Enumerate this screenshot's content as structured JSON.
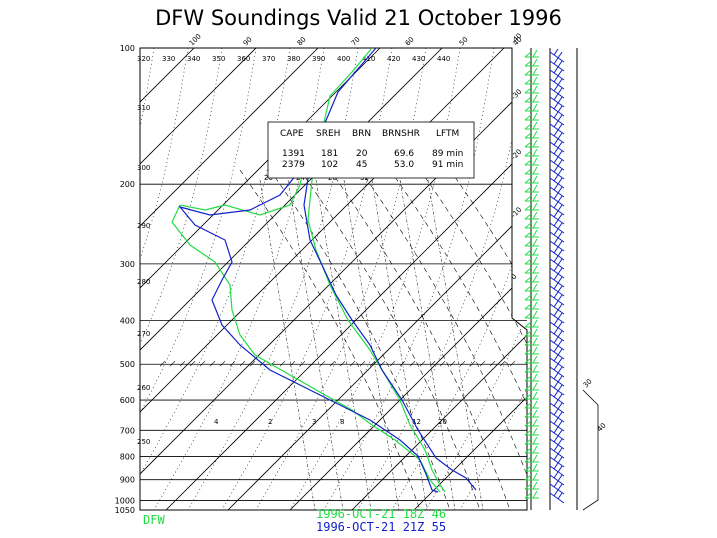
{
  "title": "DFW Soundings Valid 21 October 1996",
  "colors": {
    "run1": "#22dd44",
    "run2": "#1122cc",
    "grid": "#000000"
  },
  "station": "DFW",
  "runs": [
    {
      "label": "1996-OCT-21 18Z 46",
      "color": "#22dd44"
    },
    {
      "label": "1996-OCT-21 21Z 55",
      "color": "#1122cc"
    }
  ],
  "indices": {
    "headers": [
      "CAPE",
      "SREH",
      "BRN",
      "BRNSHR",
      "LFTM"
    ],
    "rows": [
      {
        "values": [
          "1391",
          "181",
          "20",
          "69.6",
          "89 min"
        ],
        "color": "#22dd44"
      },
      {
        "values": [
          "2379",
          "102",
          "45",
          "53.0",
          "91 min"
        ],
        "color": "#1122cc"
      }
    ]
  },
  "chart_data": {
    "type": "line",
    "title": "DFW Soundings Valid 21 October 1996",
    "y_axis": {
      "label": "",
      "scale": "log-pressure",
      "range": [
        1050,
        100
      ],
      "ticks": [
        100,
        200,
        300,
        400,
        500,
        600,
        700,
        800,
        900,
        1000,
        1050
      ]
    },
    "isotherms": [
      "-40",
      "-30",
      "-20",
      "-10",
      "0",
      "10",
      "20",
      "30",
      "40"
    ],
    "skew_top_labels": [
      "100",
      "90",
      "80",
      "70",
      "60",
      "50",
      "40"
    ],
    "dry_adiabat_labels": [
      "320",
      "330",
      "340",
      "350",
      "360",
      "370",
      "380",
      "390",
      "400",
      "410",
      "420",
      "430",
      "440",
      "310",
      "300",
      "290",
      "280",
      "270",
      "260",
      "250"
    ],
    "mixing_ratio_labels_upper": [
      "20",
      "24",
      "28",
      "32"
    ],
    "mixing_ratio_labels_lower": [
      "4",
      "2",
      "3",
      "8",
      "12",
      "20"
    ],
    "series": [
      {
        "name": "1996-OCT-21 18Z 46",
        "color": "#22dd44",
        "profile": "temperature"
      },
      {
        "name": "1996-OCT-21 21Z 55",
        "color": "#1122cc",
        "profile": "temperature"
      },
      {
        "name": "1996-OCT-21 18Z 46",
        "color": "#22dd44",
        "profile": "dewpoint"
      },
      {
        "name": "1996-OCT-21 21Z 55",
        "color": "#1122cc",
        "profile": "dewpoint"
      }
    ],
    "grid": true,
    "wind_barbs": true
  }
}
